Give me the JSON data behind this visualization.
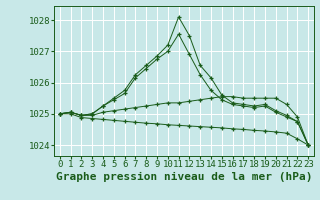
{
  "bg_color": "#c8e8e8",
  "grid_color": "#b0d8d8",
  "line_color": "#1a5c1a",
  "ylim": [
    1023.65,
    1028.45
  ],
  "xlim": [
    -0.5,
    23.5
  ],
  "yticks": [
    1024,
    1025,
    1026,
    1027,
    1028
  ],
  "xticks": [
    0,
    1,
    2,
    3,
    4,
    5,
    6,
    7,
    8,
    9,
    10,
    11,
    12,
    13,
    14,
    15,
    16,
    17,
    18,
    19,
    20,
    21,
    22,
    23
  ],
  "series1": [
    1025.0,
    1025.05,
    1024.95,
    1025.0,
    1025.25,
    1025.5,
    1025.75,
    1026.25,
    1026.55,
    1026.85,
    1027.2,
    1028.1,
    1027.5,
    1026.55,
    1026.15,
    1025.6,
    1025.35,
    1025.3,
    1025.25,
    1025.3,
    1025.1,
    1024.95,
    1024.75,
    1024.0
  ],
  "series2": [
    1025.0,
    1025.05,
    1024.95,
    1025.0,
    1025.25,
    1025.45,
    1025.65,
    1026.15,
    1026.45,
    1026.75,
    1027.0,
    1027.55,
    1026.9,
    1026.25,
    1025.75,
    1025.45,
    1025.3,
    1025.25,
    1025.2,
    1025.25,
    1025.05,
    1024.9,
    1024.75,
    1024.0
  ],
  "series3": [
    1025.0,
    1025.05,
    1024.95,
    1024.95,
    1025.05,
    1025.1,
    1025.15,
    1025.2,
    1025.25,
    1025.3,
    1025.35,
    1025.35,
    1025.4,
    1025.45,
    1025.5,
    1025.55,
    1025.55,
    1025.5,
    1025.5,
    1025.5,
    1025.5,
    1025.3,
    1024.9,
    1024.0
  ],
  "series4": [
    1025.0,
    1025.0,
    1024.88,
    1024.85,
    1024.82,
    1024.79,
    1024.76,
    1024.73,
    1024.7,
    1024.68,
    1024.65,
    1024.63,
    1024.61,
    1024.59,
    1024.57,
    1024.55,
    1024.52,
    1024.5,
    1024.47,
    1024.45,
    1024.42,
    1024.38,
    1024.2,
    1024.0
  ],
  "xlabel": "Graphe pression niveau de la mer (hPa)",
  "tick_fontsize": 6.5,
  "xlabel_fontsize": 8
}
